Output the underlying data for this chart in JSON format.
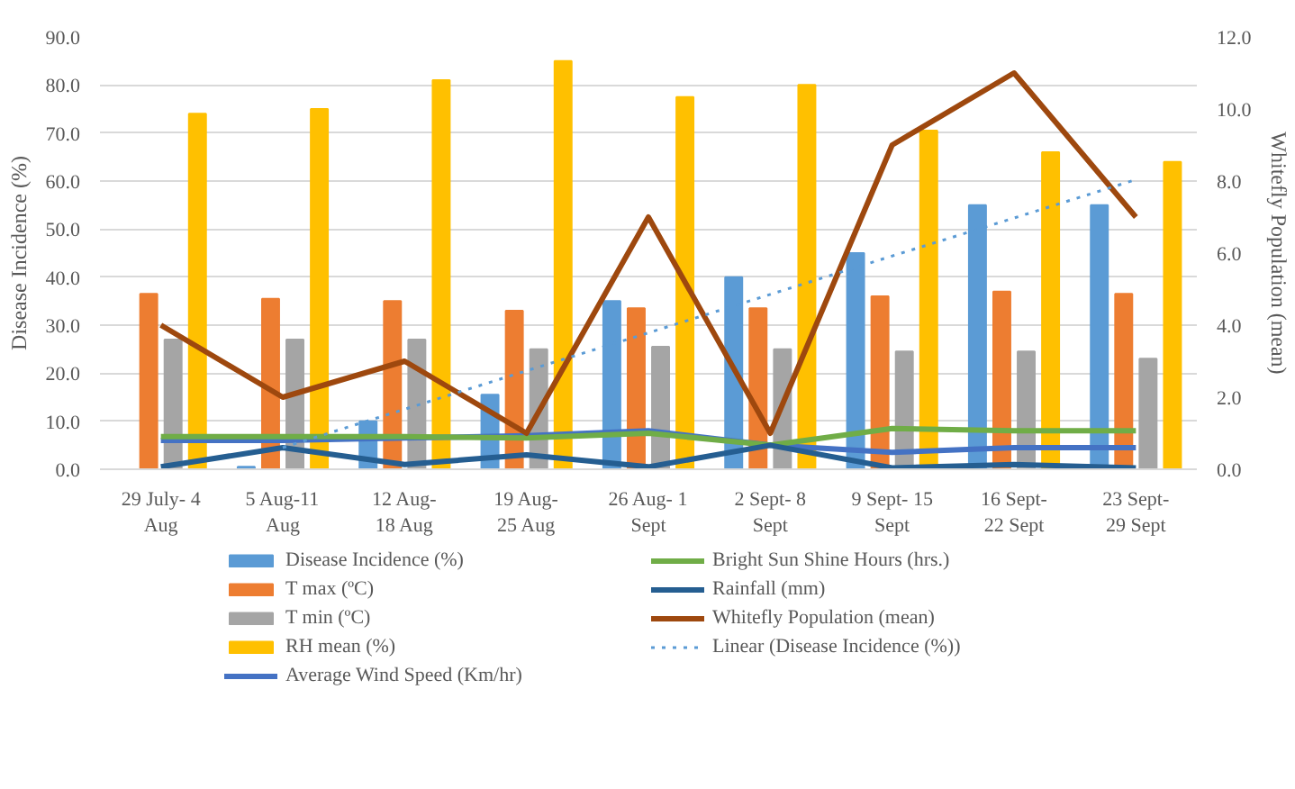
{
  "chart_data": {
    "type": "bar",
    "ylabel": "Disease Incidence (%)",
    "y2label": "Whitefly Population (mean)",
    "categories": [
      "29 July- 4\nAug",
      "5 Aug-11\nAug",
      "12 Aug-\n18 Aug",
      "19 Aug-\n25 Aug",
      "26 Aug- 1\nSept",
      "2 Sept- 8\nSept",
      "9 Sept- 15\nSept",
      "16 Sept-\n22 Sept",
      "23 Sept-\n29 Sept"
    ],
    "series": [
      {
        "name": "Disease Incidence (%)",
        "color": "#5b9bd5",
        "values": [
          0,
          0.5,
          10,
          15.5,
          35,
          40,
          45,
          55,
          55
        ]
      },
      {
        "name": "T max (ºC)",
        "color": "#ed7d31",
        "values": [
          36.5,
          35.5,
          35,
          33,
          33.5,
          33.5,
          36,
          37,
          36.5
        ]
      },
      {
        "name": "T min (ºC)",
        "color": "#a5a5a5",
        "values": [
          27,
          27,
          27,
          25,
          25.5,
          25,
          24.5,
          24.5,
          23
        ]
      },
      {
        "name": "RH mean (%)",
        "color": "#ffc000",
        "values": [
          74,
          75,
          81,
          85,
          77.5,
          80,
          70.5,
          66,
          64
        ]
      },
      {
        "name": "Average Wind Speed (Km/hr)",
        "type": "line",
        "color": "#4472c4",
        "values": [
          6,
          6,
          6.5,
          7,
          8,
          5,
          3.5,
          4.5,
          4.5
        ]
      },
      {
        "name": "Bright Sun Shine Hours (hrs.)",
        "type": "line",
        "color": "#70ad47",
        "values": [
          6.8,
          6.8,
          6.8,
          6.5,
          7.5,
          5,
          8.5,
          8,
          8
        ]
      },
      {
        "name": "Rainfall (mm)",
        "type": "line",
        "color": "#255e91",
        "values": [
          0.5,
          4.5,
          1,
          3,
          0.5,
          5,
          0.3,
          1,
          0.3
        ]
      },
      {
        "name": "Whitefly Population (mean)",
        "type": "line",
        "axis": "y2",
        "color": "#9e480e",
        "values": [
          4,
          2,
          3,
          1,
          7,
          1,
          9,
          11,
          7
        ]
      },
      {
        "name": "Linear (Disease Incidence (%))",
        "type": "line",
        "line_style": "dotted",
        "color": "#5b9bd5",
        "values": [
          null,
          4.5,
          12.5,
          20.5,
          28.4,
          36.4,
          44.4,
          52.3,
          60.3
        ]
      }
    ],
    "ylim": [
      0,
      90
    ],
    "yticks": [
      {
        "value": 0,
        "label": "0.0"
      },
      {
        "value": 10,
        "label": "10.0"
      },
      {
        "value": 20,
        "label": "20.0"
      },
      {
        "value": 30,
        "label": "30.0"
      },
      {
        "value": 40,
        "label": "40.0"
      },
      {
        "value": 50,
        "label": "50.0"
      },
      {
        "value": 60,
        "label": "60.0"
      },
      {
        "value": 70,
        "label": "70.0"
      },
      {
        "value": 80,
        "label": "80.0"
      },
      {
        "value": 90,
        "label": "90.0"
      }
    ],
    "y2lim": [
      0,
      12
    ],
    "y2ticks": [
      {
        "value": 0,
        "label": "0.0"
      },
      {
        "value": 2,
        "label": "2.0"
      },
      {
        "value": 4,
        "label": "4.0"
      },
      {
        "value": 6,
        "label": "6.0"
      },
      {
        "value": 8,
        "label": "8.0"
      },
      {
        "value": 10,
        "label": "10.0"
      },
      {
        "value": 12,
        "label": "12.0"
      }
    ],
    "grid": "y",
    "legend": "bottom",
    "line_style": "solid",
    "marker": "none"
  }
}
